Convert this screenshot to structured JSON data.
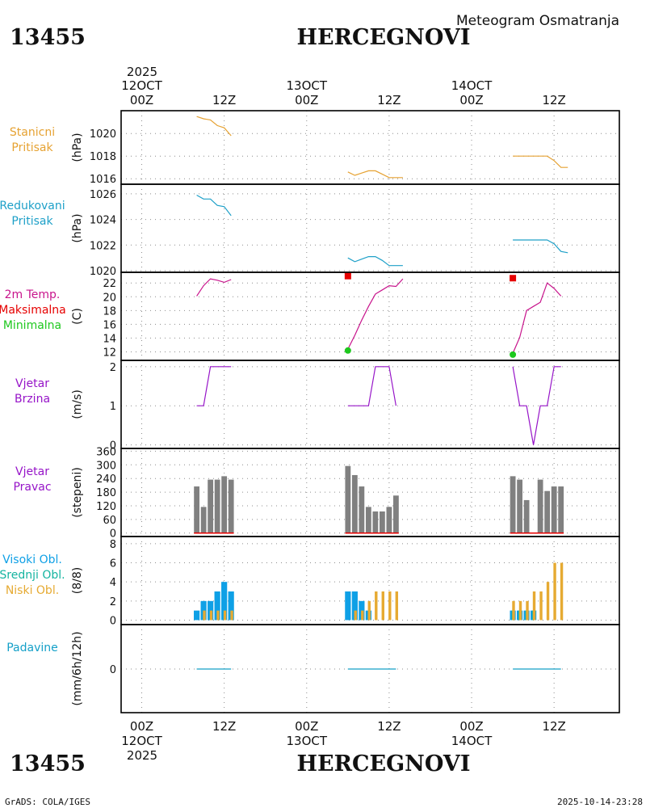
{
  "header": {
    "station_id": "13455",
    "station_name": "HERCEGNOVI",
    "chart_title": "Meteogram Osmatranja"
  },
  "footer": {
    "station_id": "13455",
    "station_name": "HERCEGNOVI",
    "credit": "GrADS: COLA/IGES",
    "timestamp": "2025-10-14-23:28"
  },
  "time_axis": {
    "top_year": "2025",
    "bottom_year": "2025",
    "top_dates": [
      {
        "t": 0,
        "label": "12OCT"
      },
      {
        "t": 24,
        "label": "13OCT"
      },
      {
        "t": 48,
        "label": "14OCT"
      }
    ],
    "bottom_dates": [
      {
        "t": 0,
        "label": "12OCT"
      },
      {
        "t": 24,
        "label": "13OCT"
      },
      {
        "t": 48,
        "label": "14OCT"
      }
    ],
    "hour_ticks": [
      {
        "t": 0,
        "label": "00Z"
      },
      {
        "t": 12,
        "label": "12Z"
      },
      {
        "t": 24,
        "label": "00Z"
      },
      {
        "t": 36,
        "label": "12Z"
      },
      {
        "t": 48,
        "label": "00Z"
      },
      {
        "t": 60,
        "label": "12Z"
      }
    ],
    "range_hours": [
      -3,
      69.5
    ]
  },
  "colors": {
    "station_pressure": "#e6a232",
    "reduced_pressure": "#1ea0c8",
    "temperature": "#c8148c",
    "tmax": "#e60000",
    "tmin": "#1ec81e",
    "wind": "#9614c8",
    "wind_dir_bar": "#808080",
    "wind_dir_base": "#e60000",
    "high_cloud": "#0ea0e6",
    "mid_cloud": "#14b4a0",
    "low_cloud": "#e6aa32",
    "precip": "#14a0c8",
    "frame": "#000000",
    "grid": "#8c8c8c"
  },
  "chart_data": [
    {
      "type": "line",
      "panel": "station_pressure",
      "labels": [
        "Stanicni",
        "Pritisak"
      ],
      "ylabel": "(hPa)",
      "ylim": [
        1015.8,
        1021.8
      ],
      "yticks": [
        1016,
        1018,
        1020
      ],
      "series": [
        {
          "name": "Stanicni Pritisak",
          "color_key": "station_pressure",
          "segments": [
            [
              [
                8,
                1021.5
              ],
              [
                9,
                1021.3
              ],
              [
                10,
                1021.2
              ],
              [
                11,
                1020.7
              ],
              [
                12,
                1020.5
              ],
              [
                13,
                1019.8
              ]
            ],
            [
              [
                30,
                1016.6
              ],
              [
                31,
                1016.3
              ],
              [
                32,
                1016.5
              ],
              [
                33,
                1016.7
              ],
              [
                34,
                1016.7
              ],
              [
                35,
                1016.4
              ],
              [
                36,
                1016.1
              ],
              [
                37,
                1016.1
              ],
              [
                38,
                1016.1
              ]
            ],
            [
              [
                54,
                1018.0
              ],
              [
                55,
                1018.0
              ],
              [
                56,
                1018.0
              ],
              [
                57,
                1018.0
              ],
              [
                58,
                1018.0
              ],
              [
                59,
                1018.0
              ],
              [
                60,
                1017.6
              ],
              [
                61,
                1017.0
              ],
              [
                62,
                1017.0
              ]
            ]
          ]
        }
      ]
    },
    {
      "type": "line",
      "panel": "reduced_pressure",
      "labels": [
        "Redukovani",
        "Pritisak"
      ],
      "ylabel": "(hPa)",
      "ylim": [
        1020,
        1026.5
      ],
      "yticks": [
        1020,
        1022,
        1024,
        1026
      ],
      "series": [
        {
          "name": "Redukovani Pritisak",
          "color_key": "reduced_pressure",
          "segments": [
            [
              [
                8,
                1025.9
              ],
              [
                9,
                1025.6
              ],
              [
                10,
                1025.6
              ],
              [
                11,
                1025.1
              ],
              [
                12,
                1025.0
              ],
              [
                13,
                1024.3
              ]
            ],
            [
              [
                30,
                1021.0
              ],
              [
                31,
                1020.7
              ],
              [
                32,
                1020.9
              ],
              [
                33,
                1021.1
              ],
              [
                34,
                1021.1
              ],
              [
                35,
                1020.8
              ],
              [
                36,
                1020.4
              ],
              [
                37,
                1020.4
              ],
              [
                38,
                1020.4
              ]
            ],
            [
              [
                54,
                1022.4
              ],
              [
                55,
                1022.4
              ],
              [
                56,
                1022.4
              ],
              [
                57,
                1022.4
              ],
              [
                58,
                1022.4
              ],
              [
                59,
                1022.4
              ],
              [
                60,
                1022.1
              ],
              [
                61,
                1021.5
              ],
              [
                62,
                1021.4
              ]
            ]
          ]
        }
      ]
    },
    {
      "type": "line",
      "panel": "temperature",
      "labels": [
        "2m Temp.",
        "Maksimalna",
        "Minimalna"
      ],
      "ylabel": "(C)",
      "ylim": [
        11,
        23.2
      ],
      "yticks": [
        12,
        14,
        16,
        18,
        20,
        22
      ],
      "series": [
        {
          "name": "2m Temp.",
          "color_key": "temperature",
          "segments": [
            [
              [
                8,
                20.1
              ],
              [
                9,
                21.6
              ],
              [
                10,
                22.6
              ],
              [
                11,
                22.4
              ],
              [
                12,
                22.1
              ],
              [
                13,
                22.5
              ]
            ],
            [
              [
                30,
                12.4
              ],
              [
                31,
                14.4
              ],
              [
                32,
                16.6
              ],
              [
                33,
                18.6
              ],
              [
                34,
                20.4
              ],
              [
                35,
                21.0
              ],
              [
                36,
                21.6
              ],
              [
                37,
                21.5
              ],
              [
                38,
                22.6
              ]
            ],
            [
              [
                54,
                11.8
              ],
              [
                55,
                14.1
              ],
              [
                56,
                18.0
              ],
              [
                57,
                18.6
              ],
              [
                58,
                19.2
              ],
              [
                59,
                22.0
              ],
              [
                60,
                21.2
              ],
              [
                61,
                20.1
              ]
            ]
          ]
        },
        {
          "name": "Maksimalna",
          "color_key": "tmax",
          "points": [
            [
              30,
              23.0
            ],
            [
              54,
              22.7
            ]
          ]
        },
        {
          "name": "Minimalna",
          "color_key": "tmin",
          "points": [
            [
              30,
              12.2
            ],
            [
              54,
              11.6
            ]
          ]
        }
      ]
    },
    {
      "type": "line",
      "panel": "wind_speed",
      "labels": [
        "Vjetar",
        "Brzina"
      ],
      "ylabel": "(m/s)",
      "ylim": [
        -0.05,
        2.1
      ],
      "yticks": [
        0,
        1,
        2
      ],
      "series": [
        {
          "name": "Vjetar Brzina",
          "color_key": "wind",
          "segments": [
            [
              [
                8,
                1
              ],
              [
                9,
                1
              ],
              [
                10,
                2
              ],
              [
                11,
                2
              ],
              [
                12,
                2
              ],
              [
                13,
                2
              ]
            ],
            [
              [
                30,
                1
              ],
              [
                31,
                1
              ],
              [
                32,
                1
              ],
              [
                33,
                1
              ],
              [
                34,
                2
              ],
              [
                35,
                2
              ],
              [
                36,
                2
              ],
              [
                37,
                1
              ]
            ],
            [
              [
                54,
                2
              ],
              [
                55,
                1
              ],
              [
                56,
                1
              ],
              [
                57,
                0
              ],
              [
                58,
                1
              ],
              [
                59,
                1
              ],
              [
                60,
                2
              ],
              [
                61,
                2
              ]
            ]
          ]
        }
      ]
    },
    {
      "type": "bar",
      "panel": "wind_direction",
      "labels": [
        "Vjetar",
        "Pravac"
      ],
      "ylabel": "(stepeni)",
      "ylim": [
        -8,
        365
      ],
      "yticks": [
        0,
        60,
        120,
        180,
        240,
        300,
        360
      ],
      "series": [
        {
          "name": "Vjetar Pravac",
          "color_key": "wind_dir_bar",
          "bars": [
            [
              8,
              205
            ],
            [
              9,
              115
            ],
            [
              10,
              235
            ],
            [
              11,
              235
            ],
            [
              12,
              250
            ],
            [
              13,
              235
            ],
            [
              30,
              295
            ],
            [
              31,
              255
            ],
            [
              32,
              205
            ],
            [
              33,
              115
            ],
            [
              34,
              95
            ],
            [
              35,
              95
            ],
            [
              36,
              115
            ],
            [
              37,
              165
            ],
            [
              54,
              250
            ],
            [
              55,
              235
            ],
            [
              56,
              145
            ],
            [
              57,
              0
            ],
            [
              58,
              235
            ],
            [
              59,
              185
            ],
            [
              60,
              205
            ],
            [
              61,
              205
            ]
          ]
        }
      ]
    },
    {
      "type": "bar",
      "panel": "clouds",
      "labels": [
        "Visoki Obl.",
        "Srednji Obl.",
        "Niski Obl."
      ],
      "ylabel": "(8/8)",
      "ylim": [
        -0.3,
        8.5
      ],
      "yticks": [
        0,
        2,
        4,
        6,
        8
      ],
      "series": [
        {
          "name": "Visoki Obl.",
          "color_key": "high_cloud",
          "bars": [
            [
              8,
              1
            ],
            [
              9,
              2
            ],
            [
              10,
              2
            ],
            [
              11,
              3
            ],
            [
              12,
              4
            ],
            [
              13,
              3
            ],
            [
              30,
              3
            ],
            [
              31,
              3
            ],
            [
              32,
              2
            ],
            [
              33,
              1
            ],
            [
              34,
              0
            ],
            [
              35,
              0
            ],
            [
              36,
              0
            ],
            [
              37,
              0
            ],
            [
              54,
              1
            ],
            [
              55,
              1
            ],
            [
              56,
              1
            ],
            [
              57,
              1
            ],
            [
              58,
              0
            ],
            [
              59,
              0
            ],
            [
              60,
              0
            ],
            [
              61,
              0
            ]
          ]
        },
        {
          "name": "Srednji Obl.",
          "color_key": "mid_cloud",
          "bars": [
            [
              8,
              0
            ],
            [
              9,
              0
            ],
            [
              10,
              0
            ],
            [
              11,
              0
            ],
            [
              12,
              0
            ],
            [
              13,
              0
            ],
            [
              30,
              0
            ],
            [
              31,
              0
            ],
            [
              32,
              0
            ],
            [
              33,
              0
            ],
            [
              34,
              0
            ],
            [
              35,
              0
            ],
            [
              36,
              0
            ],
            [
              37,
              0
            ],
            [
              54,
              1
            ],
            [
              55,
              1
            ],
            [
              56,
              1
            ],
            [
              57,
              1
            ],
            [
              58,
              0
            ],
            [
              59,
              0
            ],
            [
              60,
              0
            ],
            [
              61,
              0
            ]
          ]
        },
        {
          "name": "Niski Obl.",
          "color_key": "low_cloud",
          "bars": [
            [
              8,
              0
            ],
            [
              9,
              1
            ],
            [
              10,
              1
            ],
            [
              11,
              1
            ],
            [
              12,
              1
            ],
            [
              13,
              1
            ],
            [
              30,
              0
            ],
            [
              31,
              1
            ],
            [
              32,
              1
            ],
            [
              33,
              2
            ],
            [
              34,
              3
            ],
            [
              35,
              3
            ],
            [
              36,
              3
            ],
            [
              37,
              3
            ],
            [
              54,
              2
            ],
            [
              55,
              2
            ],
            [
              56,
              2
            ],
            [
              57,
              3
            ],
            [
              58,
              3
            ],
            [
              59,
              4
            ],
            [
              60,
              6
            ],
            [
              61,
              6
            ]
          ]
        }
      ]
    },
    {
      "type": "line",
      "panel": "precipitation",
      "labels": [
        "Padavine"
      ],
      "ylabel": "(mm/6h/12h)",
      "ylim": [
        -5,
        5
      ],
      "yticks": [
        0
      ],
      "series": [
        {
          "name": "Padavine",
          "color_key": "precip",
          "segments": [
            [
              [
                8,
                0
              ],
              [
                13,
                0
              ]
            ],
            [
              [
                30,
                0
              ],
              [
                37,
                0
              ]
            ],
            [
              [
                54,
                0
              ],
              [
                61,
                0
              ]
            ]
          ]
        }
      ]
    }
  ]
}
